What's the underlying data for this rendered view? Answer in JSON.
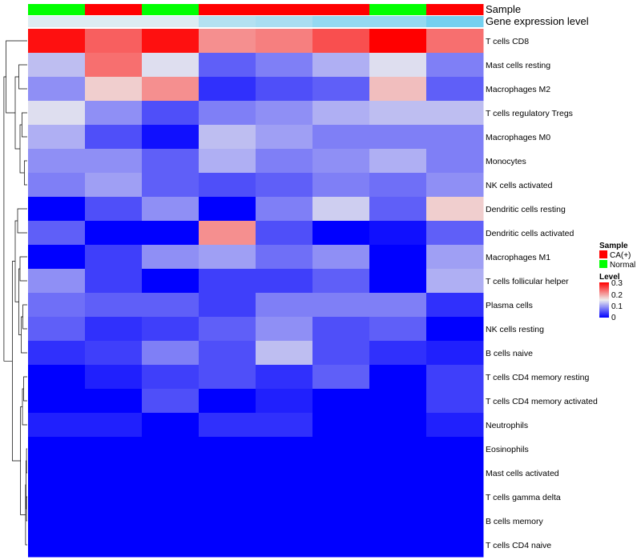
{
  "chart_data": {
    "type": "heatmap",
    "title": "",
    "samples": [
      "CA(+)",
      "Normal"
    ],
    "annotation_labels": {
      "sample": "Sample",
      "expression": "Gene expression level"
    },
    "sample_annotation": [
      "Normal",
      "CA(+)",
      "Normal",
      "CA(+)",
      "CA(+)",
      "CA(+)",
      "Normal",
      "CA(+)"
    ],
    "expression_annotation": [
      0.02,
      0.02,
      0.02,
      0.06,
      0.07,
      0.09,
      0.09,
      0.12
    ],
    "rows": [
      "T cells CD8",
      "Mast cells resting",
      "Macrophages M2",
      "T cells regulatory  Tregs",
      "Macrophages M0",
      "Monocytes",
      "NK cells activated",
      "Dendritic cells resting",
      "Dendritic cells activated",
      "Macrophages M1",
      "T cells follicular helper",
      "Plasma cells",
      "NK cells resting",
      "B cells naive",
      "T cells CD4 memory resting",
      "T cells CD4 memory activated",
      "Neutrophils",
      "Eosinophils",
      "Mast cells activated",
      "T cells gamma delta",
      "B cells memory",
      "T cells CD4 naive"
    ],
    "values": [
      [
        0.29,
        0.24,
        0.29,
        0.21,
        0.22,
        0.25,
        0.3,
        0.23
      ],
      [
        0.12,
        0.23,
        0.14,
        0.06,
        0.08,
        0.11,
        0.14,
        0.08
      ],
      [
        0.09,
        0.17,
        0.21,
        0.03,
        0.05,
        0.06,
        0.18,
        0.06
      ],
      [
        0.14,
        0.09,
        0.05,
        0.08,
        0.09,
        0.11,
        0.12,
        0.12
      ],
      [
        0.11,
        0.05,
        0.01,
        0.12,
        0.1,
        0.08,
        0.08,
        0.08
      ],
      [
        0.09,
        0.09,
        0.06,
        0.11,
        0.08,
        0.09,
        0.11,
        0.08
      ],
      [
        0.08,
        0.1,
        0.06,
        0.05,
        0.06,
        0.08,
        0.07,
        0.09
      ],
      [
        0.0,
        0.05,
        0.09,
        0.0,
        0.08,
        0.13,
        0.06,
        0.17
      ],
      [
        0.06,
        0.0,
        0.0,
        0.21,
        0.05,
        0.0,
        0.01,
        0.06
      ],
      [
        0.0,
        0.04,
        0.09,
        0.1,
        0.07,
        0.09,
        0.0,
        0.1
      ],
      [
        0.09,
        0.04,
        0.0,
        0.04,
        0.04,
        0.06,
        0.0,
        0.11
      ],
      [
        0.07,
        0.06,
        0.06,
        0.04,
        0.08,
        0.08,
        0.08,
        0.03
      ],
      [
        0.06,
        0.03,
        0.04,
        0.06,
        0.09,
        0.05,
        0.06,
        0.0
      ],
      [
        0.03,
        0.04,
        0.08,
        0.05,
        0.12,
        0.05,
        0.03,
        0.02
      ],
      [
        0.0,
        0.02,
        0.04,
        0.05,
        0.03,
        0.06,
        0.0,
        0.04
      ],
      [
        0.0,
        0.0,
        0.05,
        0.0,
        0.02,
        0.0,
        0.0,
        0.04
      ],
      [
        0.02,
        0.02,
        0.0,
        0.03,
        0.03,
        0.0,
        0.0,
        0.02
      ],
      [
        0.0,
        0.0,
        0.0,
        0.0,
        0.0,
        0.0,
        0.0,
        0.0
      ],
      [
        0.0,
        0.0,
        0.0,
        0.0,
        0.0,
        0.0,
        0.0,
        0.0
      ],
      [
        0.0,
        0.0,
        0.0,
        0.0,
        0.0,
        0.0,
        0.0,
        0.0
      ],
      [
        0.0,
        0.0,
        0.0,
        0.0,
        0.0,
        0.0,
        0.0,
        0.0
      ],
      [
        0.0,
        0.0,
        0.0,
        0.0,
        0.0,
        0.0,
        0.0,
        0.0
      ]
    ],
    "color_scale": {
      "range": [
        0,
        0.3
      ],
      "stops": [
        {
          "value": 0,
          "color": "#0000ff"
        },
        {
          "value": 0.15,
          "color": "#eeeeee"
        },
        {
          "value": 0.3,
          "color": "#ff0000"
        }
      ]
    },
    "expression_scale": {
      "range": [
        0,
        0.15
      ],
      "low_color": "#f2f2f2",
      "high_color": "#55c8f0"
    },
    "legend": {
      "sample_title": "Sample",
      "sample_entries": [
        {
          "label": "CA(+)",
          "color": "#ff0000"
        },
        {
          "label": "Normal",
          "color": "#00ff00"
        }
      ],
      "level_title": "Level",
      "level_ticks": [
        "0.3",
        "0.2",
        "0.1",
        "0"
      ],
      "placement": "right"
    },
    "row_dendrogram": true
  }
}
